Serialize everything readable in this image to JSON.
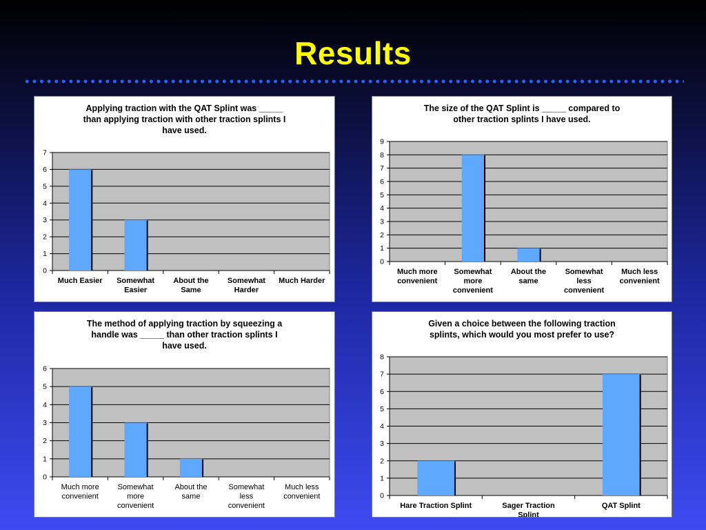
{
  "slide": {
    "title": "Results"
  },
  "colors": {
    "bar": "#5ea8ff",
    "plot_bg": "#c0c0c0",
    "title": "#ffff00"
  },
  "chart_data": [
    {
      "type": "bar",
      "title_lines": [
        "Applying traction with the QAT Splint was _____",
        "than applying traction with other traction splints I",
        "have used."
      ],
      "categories": [
        "Much Easier",
        "Somewhat Easier",
        "About the Same",
        "Somewhat Harder",
        "Much Harder"
      ],
      "values": [
        6,
        3,
        0,
        0,
        0
      ],
      "ylim": [
        0,
        7
      ],
      "grid": true
    },
    {
      "type": "bar",
      "title_lines": [
        "The size of the QAT Splint is _____ compared to",
        "other traction splints I have used."
      ],
      "categories": [
        "Much more convenient",
        "Somewhat more convenient",
        "About the same",
        "Somewhat less convenient",
        "Much less convenient"
      ],
      "values": [
        0,
        8,
        1,
        0,
        0
      ],
      "ylim": [
        0,
        9
      ],
      "grid": true
    },
    {
      "type": "bar",
      "title_lines": [
        "The method of applying traction by squeezing a",
        "handle was _____ than other traction splints I",
        "have used."
      ],
      "categories": [
        "Much more convenient",
        "Somewhat more convenient",
        "About the same",
        "Somewhat less convenient",
        "Much less convenient"
      ],
      "values": [
        5,
        3,
        1,
        0,
        0
      ],
      "ylim": [
        0,
        6
      ],
      "grid": true
    },
    {
      "type": "bar",
      "title_lines": [
        "Given a choice between the following traction",
        "splints, which would you most prefer to use?"
      ],
      "categories": [
        "Hare Traction Splint",
        "Sager Traction Splint",
        "QAT Splint"
      ],
      "values": [
        2,
        0,
        7
      ],
      "ylim": [
        0,
        8
      ],
      "grid": true
    }
  ]
}
